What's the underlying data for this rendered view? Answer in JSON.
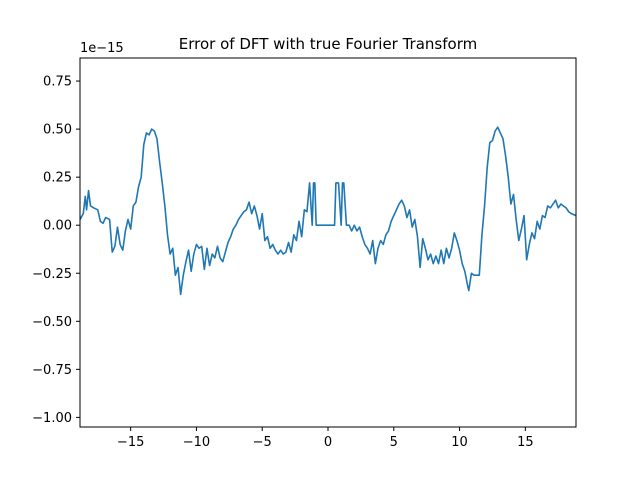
{
  "chart_data": {
    "type": "line",
    "title": "Error of DFT with true Fourier Transform",
    "xlabel": "",
    "ylabel": "",
    "y_offset_label": "1e−15",
    "xlim": [
      -18.85,
      18.85
    ],
    "ylim": [
      -1.05,
      0.87
    ],
    "x_ticks": [
      -15,
      -10,
      -5,
      0,
      5,
      10,
      15
    ],
    "x_tick_labels": [
      "−15",
      "−10",
      "−5",
      "0",
      "5",
      "10",
      "15"
    ],
    "y_ticks": [
      -1.0,
      -0.75,
      -0.5,
      -0.25,
      0.0,
      0.25,
      0.5,
      0.75
    ],
    "y_tick_labels": [
      "−1.00",
      "−0.75",
      "−0.50",
      "−0.25",
      "0.00",
      "0.25",
      "0.50",
      "0.75"
    ],
    "grid": false,
    "line_color": "#1f77b4",
    "series": [
      {
        "points": [
          [
            -18.85,
            0.03
          ],
          [
            -18.6,
            0.06
          ],
          [
            -18.45,
            0.15
          ],
          [
            -18.35,
            0.08
          ],
          [
            -18.2,
            0.18
          ],
          [
            -18.05,
            0.1
          ],
          [
            -17.8,
            0.09
          ],
          [
            -17.5,
            0.08
          ],
          [
            -17.3,
            0.02
          ],
          [
            -17.1,
            0.01
          ],
          [
            -16.9,
            0.04
          ],
          [
            -16.6,
            0.03
          ],
          [
            -16.4,
            -0.14
          ],
          [
            -16.2,
            -0.11
          ],
          [
            -16.0,
            -0.01
          ],
          [
            -15.8,
            -0.1
          ],
          [
            -15.6,
            -0.13
          ],
          [
            -15.4,
            -0.03
          ],
          [
            -15.2,
            0.03
          ],
          [
            -15.0,
            -0.02
          ],
          [
            -14.8,
            0.1
          ],
          [
            -14.6,
            0.12
          ],
          [
            -14.4,
            0.2
          ],
          [
            -14.2,
            0.25
          ],
          [
            -14.0,
            0.42
          ],
          [
            -13.8,
            0.48
          ],
          [
            -13.6,
            0.47
          ],
          [
            -13.4,
            0.5
          ],
          [
            -13.2,
            0.49
          ],
          [
            -13.0,
            0.45
          ],
          [
            -12.8,
            0.33
          ],
          [
            -12.6,
            0.22
          ],
          [
            -12.4,
            0.1
          ],
          [
            -12.2,
            -0.05
          ],
          [
            -12.0,
            -0.15
          ],
          [
            -11.8,
            -0.12
          ],
          [
            -11.6,
            -0.26
          ],
          [
            -11.4,
            -0.22
          ],
          [
            -11.2,
            -0.36
          ],
          [
            -11.0,
            -0.26
          ],
          [
            -10.8,
            -0.19
          ],
          [
            -10.6,
            -0.13
          ],
          [
            -10.4,
            -0.24
          ],
          [
            -10.2,
            -0.15
          ],
          [
            -10.0,
            -0.1
          ],
          [
            -9.8,
            -0.12
          ],
          [
            -9.6,
            -0.11
          ],
          [
            -9.4,
            -0.23
          ],
          [
            -9.2,
            -0.12
          ],
          [
            -9.0,
            -0.21
          ],
          [
            -8.8,
            -0.15
          ],
          [
            -8.6,
            -0.17
          ],
          [
            -8.4,
            -0.11
          ],
          [
            -8.2,
            -0.17
          ],
          [
            -8.0,
            -0.19
          ],
          [
            -7.8,
            -0.14
          ],
          [
            -7.6,
            -0.09
          ],
          [
            -7.4,
            -0.06
          ],
          [
            -7.2,
            -0.02
          ],
          [
            -7.0,
            0.0
          ],
          [
            -6.8,
            0.03
          ],
          [
            -6.6,
            0.05
          ],
          [
            -6.4,
            0.07
          ],
          [
            -6.2,
            0.08
          ],
          [
            -6.0,
            0.12
          ],
          [
            -5.8,
            0.06
          ],
          [
            -5.6,
            0.1
          ],
          [
            -5.4,
            0.05
          ],
          [
            -5.2,
            -0.02
          ],
          [
            -5.0,
            0.06
          ],
          [
            -4.8,
            -0.08
          ],
          [
            -4.6,
            -0.06
          ],
          [
            -4.4,
            -0.12
          ],
          [
            -4.2,
            -0.1
          ],
          [
            -4.0,
            -0.13
          ],
          [
            -3.8,
            -0.15
          ],
          [
            -3.6,
            -0.13
          ],
          [
            -3.4,
            -0.15
          ],
          [
            -3.2,
            -0.14
          ],
          [
            -3.0,
            -0.09
          ],
          [
            -2.8,
            -0.14
          ],
          [
            -2.6,
            -0.05
          ],
          [
            -2.4,
            -0.08
          ],
          [
            -2.2,
            0.02
          ],
          [
            -2.0,
            -0.06
          ],
          [
            -1.8,
            0.08
          ],
          [
            -1.6,
            0.07
          ],
          [
            -1.4,
            0.22
          ],
          [
            -1.2,
            0.0
          ],
          [
            -1.1,
            0.22
          ],
          [
            -1.0,
            0.22
          ],
          [
            -0.9,
            0.0
          ],
          [
            -0.6,
            0.0
          ],
          [
            -0.3,
            0.0
          ],
          [
            0.0,
            0.0
          ],
          [
            0.3,
            0.0
          ],
          [
            0.5,
            0.0
          ],
          [
            0.6,
            0.22
          ],
          [
            0.8,
            0.22
          ],
          [
            1.0,
            0.0
          ],
          [
            1.1,
            0.22
          ],
          [
            1.2,
            0.22
          ],
          [
            1.4,
            0.0
          ],
          [
            1.6,
            0.0
          ],
          [
            1.8,
            -0.03
          ],
          [
            2.0,
            0.0
          ],
          [
            2.2,
            -0.03
          ],
          [
            2.4,
            -0.01
          ],
          [
            2.6,
            -0.06
          ],
          [
            2.8,
            -0.1
          ],
          [
            3.0,
            -0.12
          ],
          [
            3.2,
            -0.15
          ],
          [
            3.4,
            -0.08
          ],
          [
            3.6,
            -0.2
          ],
          [
            3.8,
            -0.12
          ],
          [
            4.0,
            -0.08
          ],
          [
            4.2,
            -0.1
          ],
          [
            4.4,
            -0.05
          ],
          [
            4.6,
            -0.03
          ],
          [
            4.8,
            0.02
          ],
          [
            5.0,
            0.05
          ],
          [
            5.2,
            0.08
          ],
          [
            5.4,
            0.11
          ],
          [
            5.6,
            0.13
          ],
          [
            5.8,
            0.1
          ],
          [
            6.0,
            0.04
          ],
          [
            6.2,
            0.08
          ],
          [
            6.4,
            -0.01
          ],
          [
            6.6,
            0.03
          ],
          [
            6.8,
            -0.06
          ],
          [
            7.0,
            -0.22
          ],
          [
            7.2,
            -0.07
          ],
          [
            7.4,
            -0.12
          ],
          [
            7.6,
            -0.18
          ],
          [
            7.8,
            -0.15
          ],
          [
            8.0,
            -0.2
          ],
          [
            8.2,
            -0.16
          ],
          [
            8.4,
            -0.2
          ],
          [
            8.6,
            -0.13
          ],
          [
            8.8,
            -0.2
          ],
          [
            9.0,
            -0.12
          ],
          [
            9.2,
            -0.17
          ],
          [
            9.4,
            -0.12
          ],
          [
            9.6,
            -0.04
          ],
          [
            9.8,
            -0.08
          ],
          [
            10.0,
            -0.13
          ],
          [
            10.2,
            -0.2
          ],
          [
            10.4,
            -0.24
          ],
          [
            10.6,
            -0.31
          ],
          [
            10.7,
            -0.34
          ],
          [
            10.9,
            -0.25
          ],
          [
            11.1,
            -0.26
          ],
          [
            11.3,
            -0.26
          ],
          [
            11.5,
            -0.26
          ],
          [
            11.7,
            -0.05
          ],
          [
            11.9,
            0.1
          ],
          [
            12.1,
            0.3
          ],
          [
            12.3,
            0.43
          ],
          [
            12.5,
            0.44
          ],
          [
            12.7,
            0.49
          ],
          [
            12.9,
            0.51
          ],
          [
            13.1,
            0.48
          ],
          [
            13.3,
            0.45
          ],
          [
            13.5,
            0.36
          ],
          [
            13.7,
            0.25
          ],
          [
            13.9,
            0.11
          ],
          [
            14.1,
            0.16
          ],
          [
            14.3,
            0.03
          ],
          [
            14.5,
            -0.08
          ],
          [
            14.7,
            -0.02
          ],
          [
            14.9,
            0.05
          ],
          [
            15.1,
            -0.18
          ],
          [
            15.3,
            -0.1
          ],
          [
            15.5,
            -0.04
          ],
          [
            15.7,
            -0.07
          ],
          [
            15.9,
            0.02
          ],
          [
            16.1,
            -0.02
          ],
          [
            16.3,
            0.05
          ],
          [
            16.5,
            0.04
          ],
          [
            16.7,
            0.1
          ],
          [
            16.9,
            0.09
          ],
          [
            17.1,
            0.11
          ],
          [
            17.3,
            0.13
          ],
          [
            17.5,
            0.09
          ],
          [
            17.7,
            0.11
          ],
          [
            17.9,
            0.1
          ],
          [
            18.1,
            0.09
          ],
          [
            18.3,
            0.07
          ],
          [
            18.5,
            0.06
          ],
          [
            18.85,
            0.05
          ]
        ]
      }
    ]
  }
}
